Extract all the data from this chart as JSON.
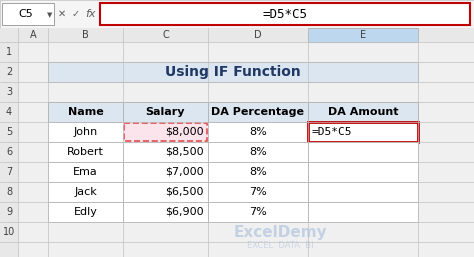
{
  "title": "Using IF Function",
  "formula_bar_cell": "C5",
  "formula_bar_formula": "=D5*C5",
  "col_headers": [
    "A",
    "B",
    "C",
    "D",
    "E"
  ],
  "row_numbers": [
    "1",
    "2",
    "3",
    "4",
    "5",
    "6",
    "7",
    "8",
    "9",
    "10"
  ],
  "table_headers": [
    "Name",
    "Salary",
    "DA Percentage",
    "DA Amount"
  ],
  "names": [
    "John",
    "Robert",
    "Ema",
    "Jack",
    "Edly"
  ],
  "salaries": [
    "$8,000",
    "$8,500",
    "$7,000",
    "$6,500",
    "$6,900"
  ],
  "da_pct": [
    "8%",
    "8%",
    "8%",
    "7%",
    "7%"
  ],
  "da_amount_row0": "=D5*C5",
  "bg_color": "#ffffff",
  "header_bg": "#dce6f1",
  "title_bg": "#dce6f1",
  "grid_line_color": "#a0a0a0",
  "col_b_highlight_bg": "#fce4ec",
  "col_b_highlight_border": "#e05050",
  "col_e_highlight_border": "#c00000",
  "formula_box_bg": "#fce4ec",
  "formula_highlight_border": "#c00000",
  "watermark_color": "#b0c4de",
  "watermark_text1": "ExcelDemy",
  "watermark_text2": "EXCEL  DATA  BI",
  "sheet_bg": "#f0f0f0",
  "toolbar_bg": "#f5f5f5",
  "selected_col_header_bg": "#bdd7ee",
  "formula_bar_bg": "#ffffff"
}
